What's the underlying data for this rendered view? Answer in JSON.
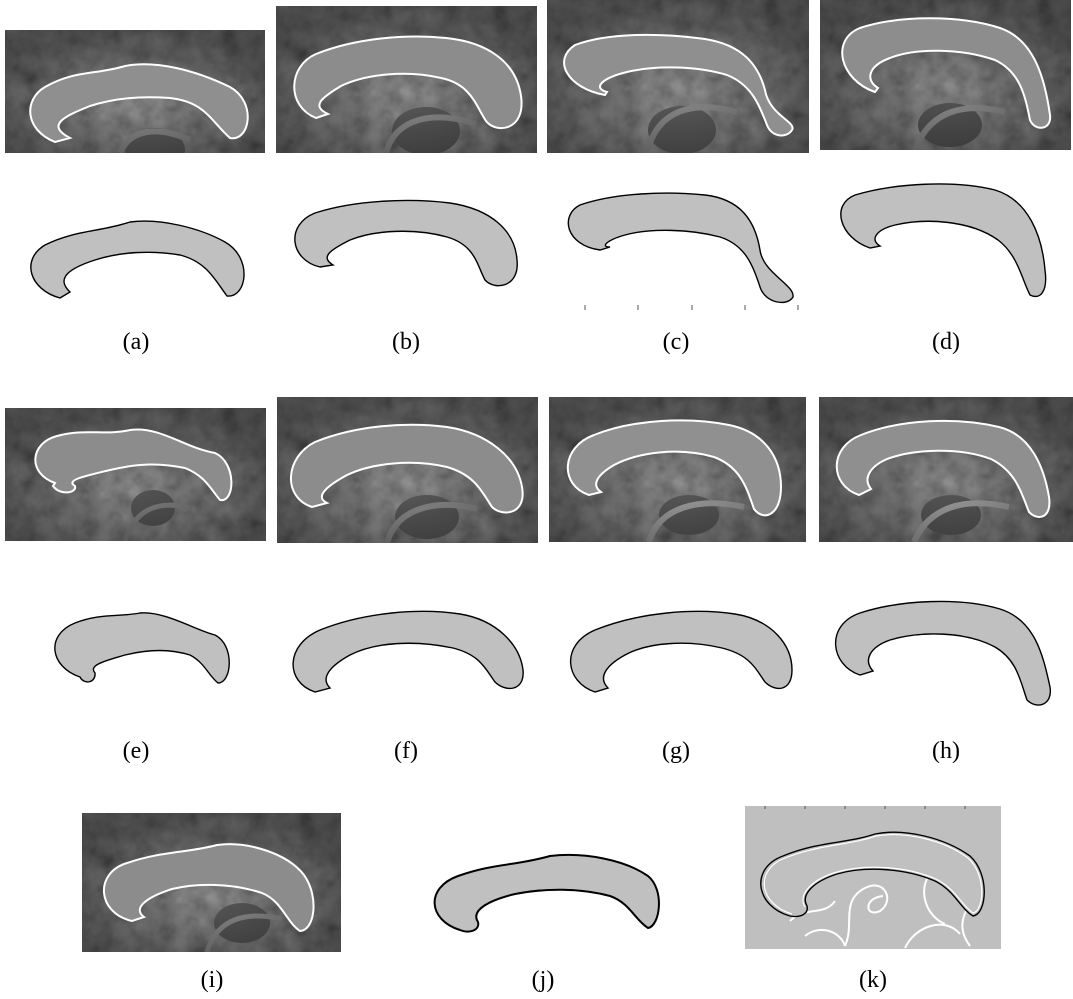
{
  "figure": {
    "captions": [
      "(a)",
      "(b)",
      "(c)",
      "(d)",
      "(e)",
      "(f)",
      "(g)",
      "(h)",
      "(i)",
      "(j)",
      "(k)"
    ]
  }
}
